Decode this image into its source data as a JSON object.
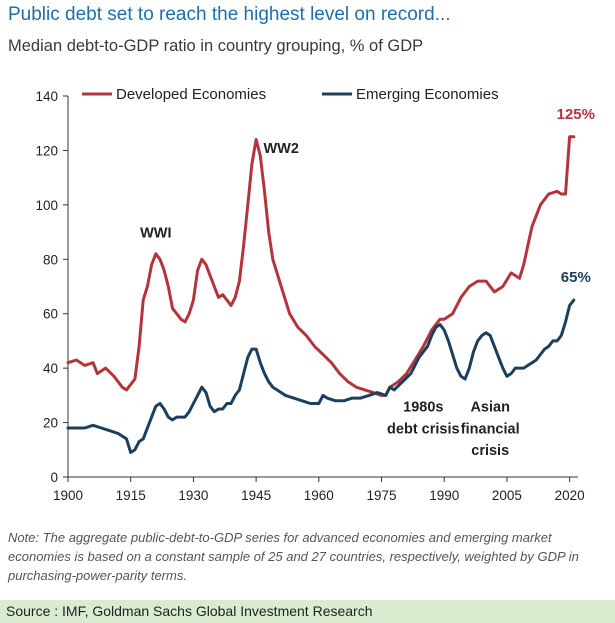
{
  "header": {
    "title": "Public debt set to reach the highest level on record...",
    "subtitle": "Median debt-to-GDP ratio in country grouping, % of GDP"
  },
  "footer": {
    "note": "Note: The aggregate public-debt-to-GDP series for advanced economies and emerging market economies is based on a constant sample of 25 and 27 countries, respectively, weighted by GDP in purchasing-power-parity terms.",
    "source": "Source : IMF, Goldman Sachs Global Investment Research"
  },
  "chart_data": {
    "type": "line",
    "title": "Public debt set to reach the highest level on record...",
    "subtitle": "Median debt-to-GDP ratio in country grouping, % of GDP",
    "xlabel": "",
    "ylabel": "",
    "xlim": [
      1900,
      2022
    ],
    "ylim": [
      0,
      140
    ],
    "xticks": [
      1900,
      1915,
      1930,
      1945,
      1960,
      1975,
      1990,
      2005,
      2020
    ],
    "yticks": [
      0,
      20,
      40,
      60,
      80,
      100,
      120,
      140
    ],
    "grid": false,
    "legend": "top",
    "series": [
      {
        "name": "Developed Economies",
        "color": "#b3353b",
        "end_label": "125%",
        "points": [
          [
            1900,
            42
          ],
          [
            1902,
            43
          ],
          [
            1904,
            41
          ],
          [
            1906,
            42
          ],
          [
            1907,
            38
          ],
          [
            1909,
            40
          ],
          [
            1911,
            37
          ],
          [
            1913,
            33
          ],
          [
            1914,
            32
          ],
          [
            1916,
            36
          ],
          [
            1917,
            48
          ],
          [
            1918,
            65
          ],
          [
            1919,
            70
          ],
          [
            1920,
            78
          ],
          [
            1921,
            82
          ],
          [
            1922,
            80
          ],
          [
            1923,
            76
          ],
          [
            1924,
            70
          ],
          [
            1925,
            62
          ],
          [
            1926,
            60
          ],
          [
            1927,
            58
          ],
          [
            1928,
            57
          ],
          [
            1929,
            60
          ],
          [
            1930,
            65
          ],
          [
            1931,
            76
          ],
          [
            1932,
            80
          ],
          [
            1933,
            78
          ],
          [
            1934,
            74
          ],
          [
            1935,
            70
          ],
          [
            1936,
            66
          ],
          [
            1937,
            67
          ],
          [
            1938,
            65
          ],
          [
            1939,
            63
          ],
          [
            1940,
            66
          ],
          [
            1941,
            72
          ],
          [
            1942,
            85
          ],
          [
            1943,
            100
          ],
          [
            1944,
            115
          ],
          [
            1945,
            124
          ],
          [
            1946,
            118
          ],
          [
            1947,
            105
          ],
          [
            1948,
            90
          ],
          [
            1949,
            80
          ],
          [
            1950,
            75
          ],
          [
            1951,
            70
          ],
          [
            1952,
            65
          ],
          [
            1953,
            60
          ],
          [
            1955,
            55
          ],
          [
            1957,
            52
          ],
          [
            1959,
            48
          ],
          [
            1961,
            45
          ],
          [
            1963,
            42
          ],
          [
            1965,
            38
          ],
          [
            1967,
            35
          ],
          [
            1969,
            33
          ],
          [
            1971,
            32
          ],
          [
            1973,
            31
          ],
          [
            1975,
            30
          ],
          [
            1976,
            30
          ],
          [
            1977,
            33
          ],
          [
            1979,
            35
          ],
          [
            1981,
            38
          ],
          [
            1983,
            43
          ],
          [
            1985,
            48
          ],
          [
            1987,
            54
          ],
          [
            1989,
            58
          ],
          [
            1990,
            58
          ],
          [
            1992,
            60
          ],
          [
            1994,
            66
          ],
          [
            1996,
            70
          ],
          [
            1998,
            72
          ],
          [
            2000,
            72
          ],
          [
            2002,
            68
          ],
          [
            2004,
            70
          ],
          [
            2006,
            75
          ],
          [
            2008,
            73
          ],
          [
            2009,
            78
          ],
          [
            2010,
            85
          ],
          [
            2011,
            92
          ],
          [
            2013,
            100
          ],
          [
            2015,
            104
          ],
          [
            2017,
            105
          ],
          [
            2018,
            104
          ],
          [
            2019,
            104
          ],
          [
            2020,
            125
          ],
          [
            2021,
            125
          ]
        ]
      },
      {
        "name": "Emerging Economies",
        "color": "#1c3f5e",
        "end_label": "65%",
        "points": [
          [
            1900,
            18
          ],
          [
            1902,
            18
          ],
          [
            1904,
            18
          ],
          [
            1906,
            19
          ],
          [
            1908,
            18
          ],
          [
            1910,
            17
          ],
          [
            1912,
            16
          ],
          [
            1914,
            14
          ],
          [
            1915,
            9
          ],
          [
            1916,
            10
          ],
          [
            1917,
            13
          ],
          [
            1918,
            14
          ],
          [
            1919,
            18
          ],
          [
            1920,
            22
          ],
          [
            1921,
            26
          ],
          [
            1922,
            27
          ],
          [
            1923,
            25
          ],
          [
            1924,
            22
          ],
          [
            1925,
            21
          ],
          [
            1926,
            22
          ],
          [
            1927,
            22
          ],
          [
            1928,
            22
          ],
          [
            1929,
            24
          ],
          [
            1930,
            27
          ],
          [
            1931,
            30
          ],
          [
            1932,
            33
          ],
          [
            1933,
            31
          ],
          [
            1934,
            26
          ],
          [
            1935,
            24
          ],
          [
            1936,
            25
          ],
          [
            1937,
            25
          ],
          [
            1938,
            27
          ],
          [
            1939,
            27
          ],
          [
            1940,
            30
          ],
          [
            1941,
            32
          ],
          [
            1942,
            38
          ],
          [
            1943,
            44
          ],
          [
            1944,
            47
          ],
          [
            1945,
            47
          ],
          [
            1946,
            42
          ],
          [
            1947,
            38
          ],
          [
            1948,
            35
          ],
          [
            1949,
            33
          ],
          [
            1950,
            32
          ],
          [
            1952,
            30
          ],
          [
            1954,
            29
          ],
          [
            1956,
            28
          ],
          [
            1958,
            27
          ],
          [
            1960,
            27
          ],
          [
            1961,
            30
          ],
          [
            1962,
            29
          ],
          [
            1964,
            28
          ],
          [
            1966,
            28
          ],
          [
            1968,
            29
          ],
          [
            1970,
            29
          ],
          [
            1972,
            30
          ],
          [
            1974,
            31
          ],
          [
            1976,
            30
          ],
          [
            1977,
            33
          ],
          [
            1978,
            32
          ],
          [
            1980,
            35
          ],
          [
            1982,
            38
          ],
          [
            1984,
            44
          ],
          [
            1986,
            48
          ],
          [
            1987,
            52
          ],
          [
            1988,
            55
          ],
          [
            1989,
            56
          ],
          [
            1990,
            54
          ],
          [
            1991,
            50
          ],
          [
            1992,
            45
          ],
          [
            1993,
            40
          ],
          [
            1994,
            37
          ],
          [
            1995,
            36
          ],
          [
            1996,
            40
          ],
          [
            1997,
            46
          ],
          [
            1998,
            50
          ],
          [
            1999,
            52
          ],
          [
            2000,
            53
          ],
          [
            2001,
            52
          ],
          [
            2002,
            48
          ],
          [
            2003,
            44
          ],
          [
            2004,
            40
          ],
          [
            2005,
            37
          ],
          [
            2006,
            38
          ],
          [
            2007,
            40
          ],
          [
            2008,
            40
          ],
          [
            2009,
            40
          ],
          [
            2010,
            41
          ],
          [
            2011,
            42
          ],
          [
            2012,
            43
          ],
          [
            2013,
            45
          ],
          [
            2014,
            47
          ],
          [
            2015,
            48
          ],
          [
            2016,
            50
          ],
          [
            2017,
            50
          ],
          [
            2018,
            52
          ],
          [
            2019,
            57
          ],
          [
            2020,
            63
          ],
          [
            2021,
            65
          ]
        ]
      }
    ],
    "annotations": [
      {
        "text": "WWI",
        "x": 1921,
        "y": 88
      },
      {
        "text": "WW2",
        "x": 1951,
        "y": 119
      },
      {
        "text": "1980s",
        "x": 1985,
        "y": 24
      },
      {
        "text": "debt crisis",
        "x": 1985,
        "y": 16
      },
      {
        "text": "Asian",
        "x": 2001,
        "y": 24
      },
      {
        "text": "financial",
        "x": 2001,
        "y": 16
      },
      {
        "text": "crisis",
        "x": 2001,
        "y": 8
      }
    ]
  }
}
